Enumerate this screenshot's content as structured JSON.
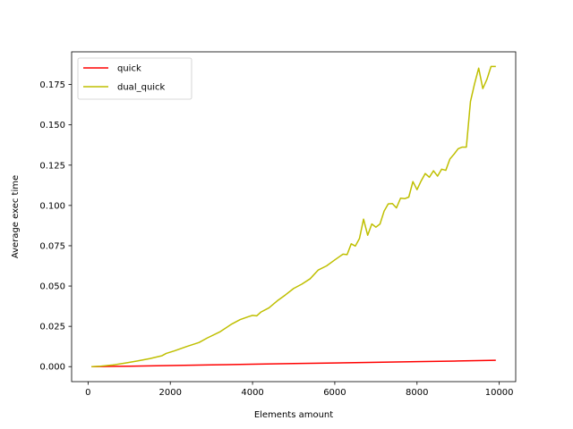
{
  "chart_data": {
    "type": "line",
    "title": "",
    "xlabel": "Elements amount",
    "ylabel": "Average exec time",
    "xlim": [
      -400,
      10400
    ],
    "ylim": [
      -0.0093,
      0.1953
    ],
    "xticks": [
      0,
      2000,
      4000,
      6000,
      8000,
      10000
    ],
    "xtick_labels": [
      "0",
      "2000",
      "4000",
      "6000",
      "8000",
      "10000"
    ],
    "yticks": [
      0.0,
      0.025,
      0.05,
      0.075,
      0.1,
      0.125,
      0.15,
      0.175
    ],
    "ytick_labels": [
      "0.000",
      "0.025",
      "0.050",
      "0.075",
      "0.100",
      "0.125",
      "0.150",
      "0.175"
    ],
    "grid": false,
    "legend_position": "top-left",
    "series": [
      {
        "name": "quick",
        "color": "#ff0000",
        "x": [
          100,
          1000,
          2000,
          3000,
          4000,
          5000,
          6000,
          7000,
          8000,
          9000,
          9900
        ],
        "y": [
          0.0,
          0.0003,
          0.0007,
          0.0011,
          0.0015,
          0.0019,
          0.0023,
          0.0027,
          0.0031,
          0.0035,
          0.0039
        ]
      },
      {
        "name": "dual_quick",
        "color": "#bfbf00",
        "x": [
          100,
          300,
          600,
          900,
          1200,
          1500,
          1800,
          1900,
          2100,
          2400,
          2700,
          2900,
          3200,
          3500,
          3700,
          3900,
          4000,
          4100,
          4200,
          4400,
          4600,
          4800,
          5000,
          5200,
          5400,
          5600,
          5800,
          6000,
          6200,
          6300,
          6400,
          6500,
          6600,
          6700,
          6800,
          6900,
          7000,
          7100,
          7200,
          7300,
          7400,
          7500,
          7600,
          7700,
          7800,
          7900,
          8000,
          8100,
          8200,
          8300,
          8400,
          8500,
          8600,
          8700,
          8800,
          8900,
          9000,
          9100,
          9200,
          9300,
          9400,
          9500,
          9600,
          9700,
          9800,
          9900
        ],
        "y": [
          0.0,
          0.0003,
          0.001,
          0.0022,
          0.0035,
          0.005,
          0.0068,
          0.0082,
          0.0098,
          0.0125,
          0.015,
          0.0178,
          0.0215,
          0.0265,
          0.0292,
          0.031,
          0.0318,
          0.0315,
          0.0338,
          0.0365,
          0.0408,
          0.0445,
          0.0485,
          0.0512,
          0.0545,
          0.06,
          0.0625,
          0.0662,
          0.0698,
          0.0695,
          0.0762,
          0.0748,
          0.0795,
          0.0915,
          0.0815,
          0.0885,
          0.0865,
          0.0885,
          0.0965,
          0.101,
          0.1012,
          0.0985,
          0.1045,
          0.1042,
          0.1052,
          0.1148,
          0.1098,
          0.1152,
          0.1198,
          0.1175,
          0.1215,
          0.1182,
          0.1225,
          0.1218,
          0.1288,
          0.1318,
          0.1352,
          0.1362,
          0.1362,
          0.1645,
          0.1755,
          0.1852,
          0.1725,
          0.1782,
          0.1862,
          0.1862
        ]
      }
    ]
  }
}
